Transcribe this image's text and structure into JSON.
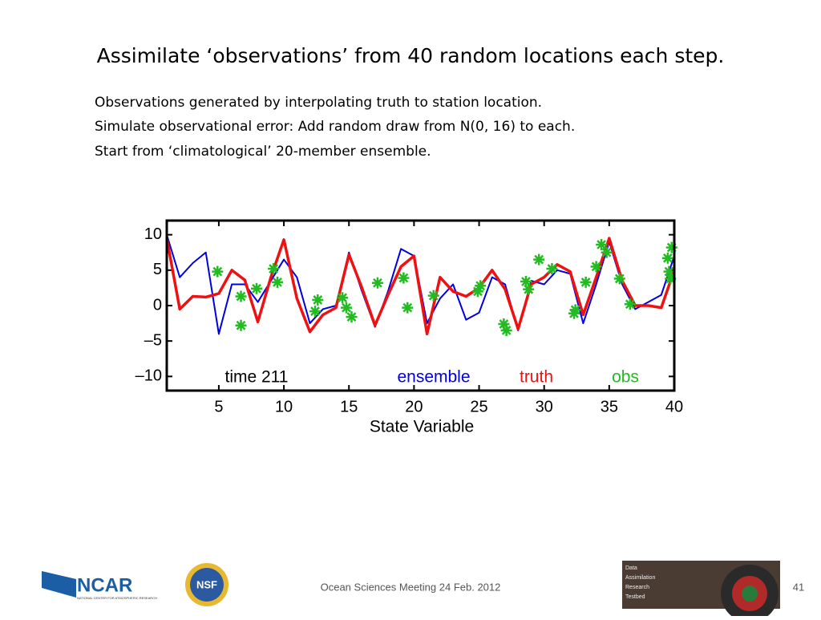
{
  "slide": {
    "title": "Assimilate ‘observations’ from 40 random locations each step.",
    "bullets": [
      "Observations generated by interpolating truth to station location.",
      "Simulate observational error: Add random draw from N(0, 16) to each.",
      "Start from ‘climatological’ 20-member ensemble."
    ],
    "footer": "Ocean Sciences Meeting 24 Feb. 2012",
    "page_number": "41",
    "ncar_logo": "NCAR",
    "ncar_subtitle": "NATIONAL CENTER FOR ATMOSPHERIC RESEARCH",
    "nsf_logo": "NSF",
    "dart_logo": [
      "Data",
      "Assimilation",
      "Research",
      "Testbed"
    ]
  },
  "chart_data": {
    "type": "line",
    "xlabel": "State Variable",
    "annotation": "time 211",
    "x": [
      1,
      2,
      3,
      4,
      5,
      6,
      7,
      8,
      9,
      10,
      11,
      12,
      13,
      14,
      15,
      16,
      17,
      18,
      19,
      20,
      21,
      22,
      23,
      24,
      25,
      26,
      27,
      28,
      29,
      30,
      31,
      32,
      33,
      34,
      35,
      36,
      37,
      38,
      39,
      40
    ],
    "series": [
      {
        "name": "ensemble",
        "color": "#0000e0",
        "values": [
          10,
          4,
          6,
          7.5,
          -4,
          3,
          3,
          0.5,
          3.5,
          6.5,
          4,
          -2.5,
          -0.5,
          0,
          7.5,
          2,
          -3,
          2,
          8,
          7,
          -2.5,
          1,
          3,
          -2,
          -1,
          4,
          3,
          -3.5,
          3.5,
          3,
          5,
          4.5,
          -2.5,
          3,
          9,
          3,
          -0.5,
          0.5,
          1.5,
          7
        ]
      },
      {
        "name": "truth",
        "color": "#ee1111",
        "values": [
          9.5,
          -0.5,
          1.3,
          1.2,
          1.7,
          5,
          3.6,
          -2.3,
          4,
          9.3,
          1,
          -3.7,
          -1.3,
          -0.3,
          7.2,
          2.5,
          -2.8,
          1.5,
          5.5,
          7,
          -4,
          4,
          2,
          1.3,
          2.5,
          5,
          2.3,
          -3.3,
          3,
          4,
          5.8,
          4.8,
          -1.3,
          4,
          9.5,
          3.5,
          0,
          0,
          -0.3,
          5
        ]
      },
      {
        "name": "obs",
        "type": "scatter",
        "color": "#22bb22",
        "x": [
          4.9,
          6.7,
          6.7,
          7.9,
          9.2,
          9.5,
          12.4,
          12.6,
          14.5,
          14.8,
          15.2,
          17.2,
          19.2,
          19.5,
          21.5,
          24.9,
          25.1,
          26.9,
          27.1,
          28.6,
          28.8,
          29.6,
          30.6,
          32.3,
          32.4,
          33.2,
          34,
          34.4,
          34.8,
          35.8,
          36.6,
          39.6,
          39.7,
          39.5,
          39.8
        ],
        "values": [
          4.8,
          1.3,
          -2.8,
          2.4,
          5.2,
          3.3,
          -0.8,
          0.8,
          1.1,
          -0.3,
          -1.6,
          3.2,
          3.9,
          -0.3,
          1.4,
          2,
          2.8,
          -2.6,
          -3.5,
          3.4,
          2.3,
          6.5,
          5.2,
          -1.1,
          -0.6,
          3.3,
          5.5,
          8.6,
          7.5,
          3.8,
          0.2,
          4.8,
          3.8,
          6.7,
          8.2
        ]
      }
    ],
    "xlim": [
      1,
      40
    ],
    "ylim": [
      -12,
      12
    ],
    "xticks": [
      5,
      10,
      15,
      20,
      25,
      30,
      35,
      40
    ],
    "yticks": [
      10,
      5,
      0,
      {
        "value": -5,
        "label": "–5"
      },
      {
        "value": -10,
        "label": "–10"
      }
    ]
  }
}
